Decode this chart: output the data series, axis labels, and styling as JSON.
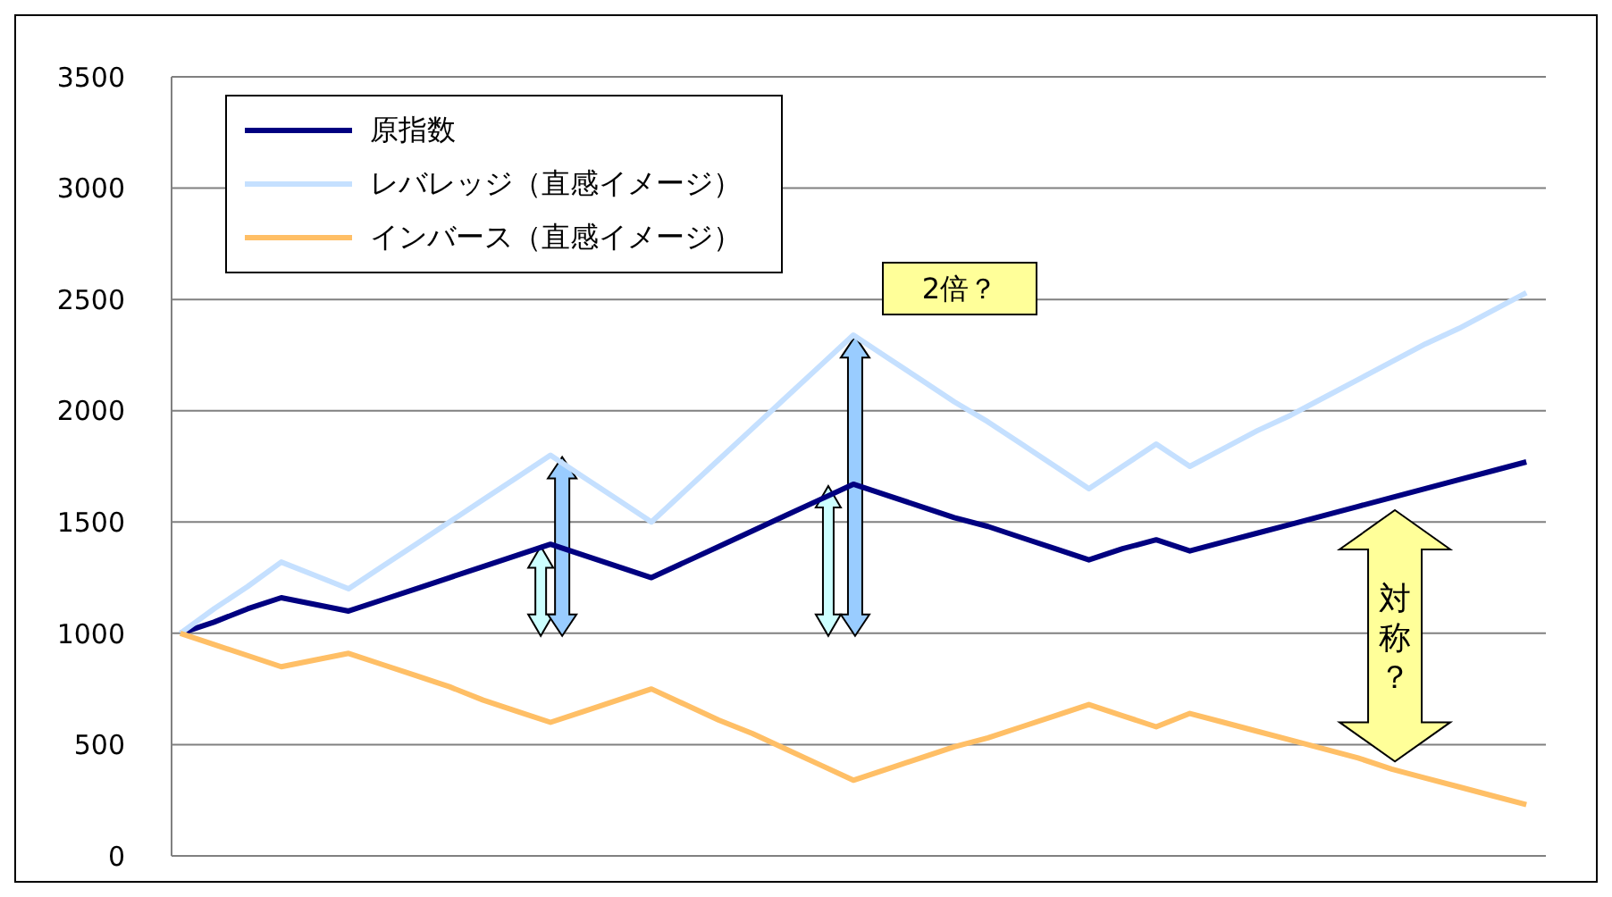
{
  "chart_data": {
    "type": "line",
    "categories": [
      null,
      null,
      null,
      null,
      null,
      null,
      null,
      null,
      null,
      null,
      null,
      null,
      null,
      null,
      null,
      null,
      null,
      null,
      null,
      null,
      null,
      null,
      null,
      null,
      null,
      null,
      null,
      null,
      null,
      null,
      null,
      null,
      null,
      null,
      null,
      null,
      null,
      null,
      null,
      null,
      null
    ],
    "series": [
      {
        "name": "原指数",
        "color": "#000080",
        "values": [
          1000,
          1050,
          1110,
          1160,
          1130,
          1100,
          1150,
          1200,
          1250,
          1300,
          1350,
          1400,
          1350,
          1300,
          1250,
          1320,
          1390,
          1460,
          1530,
          1600,
          1670,
          1620,
          1570,
          1520,
          1480,
          1430,
          1380,
          1330,
          1380,
          1420,
          1370,
          1410,
          1450,
          1490,
          1530,
          1570,
          1610,
          1650,
          1690,
          1730,
          1770
        ]
      },
      {
        "name": "レバレッジ（直感イメージ）",
        "color": "#c5e0ff",
        "values": [
          1000,
          1110,
          1210,
          1320,
          1260,
          1200,
          1300,
          1400,
          1500,
          1600,
          1700,
          1800,
          1700,
          1600,
          1500,
          1640,
          1780,
          1920,
          2060,
          2200,
          2340,
          2240,
          2140,
          2040,
          1950,
          1850,
          1750,
          1650,
          1750,
          1850,
          1750,
          1830,
          1910,
          1980,
          2060,
          2140,
          2220,
          2300,
          2370,
          2450,
          2530
        ]
      },
      {
        "name": "インバース（直感イメージ）",
        "color": "#ffbf66",
        "values": [
          1000,
          950,
          900,
          850,
          880,
          910,
          860,
          810,
          760,
          700,
          650,
          600,
          650,
          700,
          750,
          680,
          610,
          550,
          480,
          410,
          340,
          390,
          440,
          490,
          530,
          580,
          630,
          680,
          630,
          580,
          640,
          600,
          560,
          520,
          480,
          440,
          390,
          350,
          310,
          270,
          230
        ]
      }
    ],
    "ylim": [
      0,
      3500
    ],
    "yticks": [
      0,
      500,
      1000,
      1500,
      2000,
      2500,
      3000,
      3500
    ],
    "grid": "y",
    "legend": "top left",
    "marker": "none",
    "line_style": "solid",
    "annotations": [
      "2倍？",
      "対称？"
    ]
  }
}
